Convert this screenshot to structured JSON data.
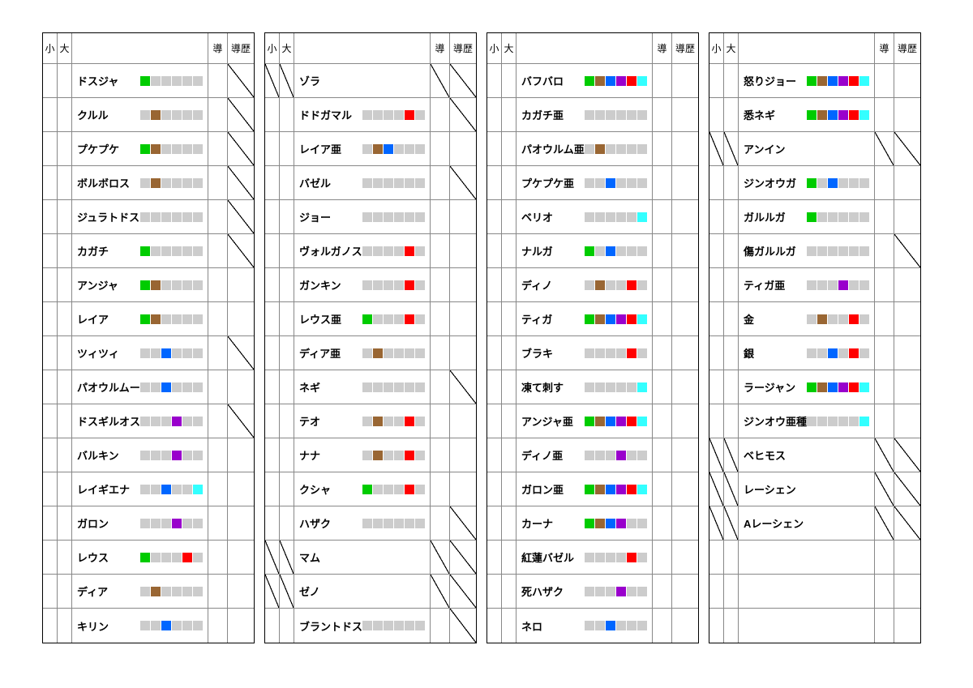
{
  "headers": {
    "small": "小",
    "big": "大",
    "main": "",
    "d": "導",
    "dh": "導歴"
  },
  "palette": {
    "_": "#cccccc",
    "G": "#00cc00",
    "B": "#996633",
    "U": "#0066ff",
    "P": "#9900cc",
    "R": "#ff0000",
    "C": "#33ffff",
    "M": "#ff33cc"
  },
  "rows_per_panel": 17,
  "panels": [
    {
      "rows": [
        {
          "name": "ドスジャ",
          "chips": "G_____",
          "dh": "/"
        },
        {
          "name": "クルル",
          "chips": "_B____",
          "dh": "/"
        },
        {
          "name": "プケプケ",
          "chips": "GB____",
          "dh": "/"
        },
        {
          "name": "ボルボロス",
          "chips": "_B____",
          "dh": "/"
        },
        {
          "name": "ジュラトドス",
          "chips": "______",
          "dh": "/"
        },
        {
          "name": "カガチ",
          "chips": "G_____",
          "dh": "/"
        },
        {
          "name": "アンジャ",
          "chips": "GB____"
        },
        {
          "name": "レイア",
          "chips": "GB____"
        },
        {
          "name": "ツィツィ",
          "chips": "__U___",
          "dh": "/"
        },
        {
          "name": "パオウルムー",
          "chips": "__U___"
        },
        {
          "name": "ドスギルオス",
          "chips": "___P__",
          "dh": "/"
        },
        {
          "name": "バルキン",
          "chips": "___P__"
        },
        {
          "name": "レイギエナ",
          "chips": "__U__C"
        },
        {
          "name": "ガロン",
          "chips": "___P__"
        },
        {
          "name": "レウス",
          "chips": "G___R_"
        },
        {
          "name": "ディア",
          "chips": "_B____"
        },
        {
          "name": "キリン",
          "chips": "__U___"
        }
      ]
    },
    {
      "rows": [
        {
          "name": "ゾラ",
          "chips": "",
          "small": "/",
          "big": "/",
          "d": "/",
          "dh": "/"
        },
        {
          "name": "ドドガマル",
          "chips": "____R_",
          "dh": "/"
        },
        {
          "name": "レイア亜",
          "chips": "_BU___"
        },
        {
          "name": "バゼル",
          "chips": "______",
          "dh": "/"
        },
        {
          "name": "ジョー",
          "chips": "______"
        },
        {
          "name": "ヴォルガノス",
          "chips": "____R_"
        },
        {
          "name": "ガンキン",
          "chips": "____R_"
        },
        {
          "name": "レウス亜",
          "chips": "G___R_"
        },
        {
          "name": "ディア亜",
          "chips": "_B____"
        },
        {
          "name": "ネギ",
          "chips": "______",
          "dh": "/"
        },
        {
          "name": "テオ",
          "chips": "_B__R_"
        },
        {
          "name": "ナナ",
          "chips": "_B__R_"
        },
        {
          "name": "クシャ",
          "chips": "G___R_"
        },
        {
          "name": "ハザク",
          "chips": "______",
          "dh": "/"
        },
        {
          "name": "マム",
          "chips": "",
          "small": "/",
          "big": "/",
          "d": "/",
          "dh": "/"
        },
        {
          "name": "ゼノ",
          "chips": "",
          "small": "/",
          "big": "/",
          "d": "/",
          "dh": "/"
        },
        {
          "name": "ブラントドス",
          "chips": "______",
          "dh": "/"
        }
      ]
    },
    {
      "rows": [
        {
          "name": "バフバロ",
          "chips": "GBUPRC"
        },
        {
          "name": "カガチ亜",
          "chips": "______"
        },
        {
          "name": "パオウルム亜",
          "chips": "_B____"
        },
        {
          "name": "プケプケ亜",
          "chips": "__U___"
        },
        {
          "name": "ベリオ",
          "chips": "_____C"
        },
        {
          "name": "ナルガ",
          "chips": "G_U___"
        },
        {
          "name": "ディノ",
          "chips": "_B__R_"
        },
        {
          "name": "ティガ",
          "chips": "GBUPRC"
        },
        {
          "name": "ブラキ",
          "chips": "____R_"
        },
        {
          "name": "凍て刺す",
          "chips": "_____C"
        },
        {
          "name": "アンジャ亜",
          "chips": "GBUPRC"
        },
        {
          "name": "ディノ亜",
          "chips": "___P__"
        },
        {
          "name": "ガロン亜",
          "chips": "GBUPRC"
        },
        {
          "name": "カーナ",
          "chips": "GBUP__"
        },
        {
          "name": "紅蓮バゼル",
          "chips": "____R_"
        },
        {
          "name": "死ハザク",
          "chips": "___P__"
        },
        {
          "name": "ネロ",
          "chips": "__U___"
        }
      ]
    },
    {
      "rows": [
        {
          "name": "怒りジョー",
          "chips": "GBUPRC"
        },
        {
          "name": "悉ネギ",
          "chips": "GBUPRC"
        },
        {
          "name": "アンイン",
          "chips": "",
          "small": "/",
          "big": "/",
          "d": "/",
          "dh": "/"
        },
        {
          "name": "ジンオウガ",
          "chips": "G_U___"
        },
        {
          "name": "ガルルガ",
          "chips": "G_____"
        },
        {
          "name": "傷ガルルガ",
          "chips": "______",
          "dh": "/"
        },
        {
          "name": "ティガ亜",
          "chips": "___P__"
        },
        {
          "name": "金",
          "chips": "_B__R_"
        },
        {
          "name": "銀",
          "chips": "__U_R_"
        },
        {
          "name": "ラージャン",
          "chips": "GBUPRC"
        },
        {
          "name": "ジンオウ亜種",
          "chips": "_____C"
        },
        {
          "name": "ベヒモス",
          "chips": "",
          "small": "/",
          "big": "/",
          "d": "/",
          "dh": "/"
        },
        {
          "name": "レーシェン",
          "chips": "",
          "small": "/",
          "big": "/",
          "d": "/",
          "dh": "/"
        },
        {
          "name": "Aレーシェン",
          "chips": "",
          "small": "/",
          "big": "/",
          "d": "/",
          "dh": "/"
        },
        {
          "empty": true
        },
        {
          "empty": true
        },
        {
          "empty": true
        }
      ]
    }
  ]
}
